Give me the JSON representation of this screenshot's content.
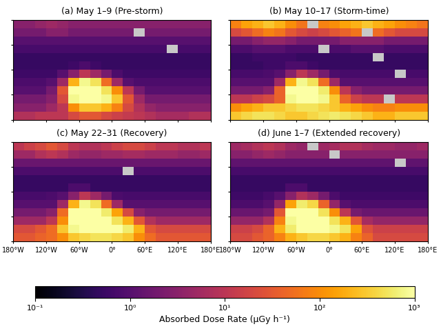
{
  "chart_data": [
    {
      "type": "heatmap",
      "title": "(a) May 1–9 (Pre-storm)",
      "tick_labels": false,
      "x": [
        -170,
        -150,
        -130,
        -110,
        -90,
        -70,
        -50,
        -30,
        -10,
        10,
        30,
        50,
        70,
        90,
        110,
        130,
        150,
        170
      ],
      "y": [
        55,
        45,
        35,
        25,
        15,
        5,
        -5,
        -15,
        -25,
        -35,
        -45,
        -55
      ],
      "xlim": [
        -180,
        180
      ],
      "ylim": [
        -60,
        60
      ],
      "xticks": [
        {
          "value": -180,
          "label": "180°W"
        },
        {
          "value": -120,
          "label": "120°W"
        },
        {
          "value": -60,
          "label": "60°W"
        },
        {
          "value": 0,
          "label": "0°"
        },
        {
          "value": 60,
          "label": "60°E"
        },
        {
          "value": 120,
          "label": "120°E"
        },
        {
          "value": 180,
          "label": "180°E"
        }
      ],
      "yticks": [
        -60,
        -30,
        0,
        30,
        60
      ],
      "cells": [
        [
          3,
          3,
          4,
          5,
          4,
          3,
          3,
          3,
          3,
          3,
          3,
          3,
          3,
          3,
          3,
          3,
          3,
          3
        ],
        [
          2,
          2,
          2,
          3,
          3,
          2,
          2,
          2,
          2,
          2,
          2,
          null,
          2,
          2,
          2,
          2,
          2,
          2
        ],
        [
          1,
          1,
          1,
          1,
          1,
          1,
          1,
          1,
          1,
          1,
          1,
          1,
          1,
          1,
          1,
          1,
          1,
          1
        ],
        [
          0.7,
          0.7,
          0.7,
          0.7,
          0.7,
          0.7,
          0.7,
          0.7,
          0.7,
          0.7,
          0.7,
          0.7,
          0.7,
          0.7,
          null,
          0.7,
          0.7,
          0.7
        ],
        [
          0.5,
          0.5,
          0.5,
          0.5,
          0.5,
          0.5,
          0.5,
          0.5,
          0.5,
          0.5,
          0.5,
          0.5,
          0.5,
          0.5,
          0.5,
          0.5,
          0.5,
          0.5
        ],
        [
          0.5,
          0.5,
          0.5,
          0.5,
          0.5,
          0.6,
          0.8,
          0.6,
          0.5,
          0.5,
          0.5,
          0.5,
          0.5,
          0.5,
          0.5,
          0.5,
          0.5,
          0.5
        ],
        [
          0.6,
          0.6,
          0.6,
          0.6,
          1,
          3,
          10,
          5,
          2,
          0.8,
          0.6,
          0.6,
          0.6,
          0.6,
          0.6,
          0.6,
          0.6,
          0.6
        ],
        [
          0.8,
          0.8,
          0.8,
          1,
          5,
          200,
          800,
          500,
          50,
          5,
          1,
          0.8,
          0.8,
          0.8,
          0.8,
          0.8,
          0.8,
          0.8
        ],
        [
          1,
          1,
          1,
          2,
          30,
          1000,
          1000,
          1000,
          500,
          100,
          10,
          2,
          1,
          1,
          1,
          1,
          1,
          1
        ],
        [
          2,
          2,
          2,
          3,
          20,
          800,
          1000,
          1000,
          800,
          300,
          30,
          5,
          2,
          2,
          2,
          2,
          2,
          2
        ],
        [
          3,
          3,
          3,
          5,
          10,
          100,
          300,
          300,
          200,
          80,
          20,
          8,
          4,
          3,
          3,
          3,
          3,
          3
        ],
        [
          8,
          8,
          10,
          10,
          10,
          20,
          30,
          30,
          20,
          15,
          12,
          10,
          8,
          6,
          6,
          6,
          8,
          8
        ]
      ]
    },
    {
      "type": "heatmap",
      "title": "(b) May 10–17 (Storm-time)",
      "tick_labels": false,
      "x": [
        -170,
        -150,
        -130,
        -110,
        -90,
        -70,
        -50,
        -30,
        -10,
        10,
        30,
        50,
        70,
        90,
        110,
        130,
        150,
        170
      ],
      "y": [
        55,
        45,
        35,
        25,
        15,
        5,
        -5,
        -15,
        -25,
        -35,
        -45,
        -55
      ],
      "xlim": [
        -180,
        180
      ],
      "ylim": [
        -60,
        60
      ],
      "xticks": [
        {
          "value": -180,
          "label": "180°W"
        },
        {
          "value": -120,
          "label": "120°W"
        },
        {
          "value": -60,
          "label": "60°W"
        },
        {
          "value": 0,
          "label": "0°"
        },
        {
          "value": 60,
          "label": "60°E"
        },
        {
          "value": 120,
          "label": "120°E"
        },
        {
          "value": 180,
          "label": "180°E"
        }
      ],
      "yticks": [
        -60,
        -30,
        0,
        30,
        60
      ],
      "cells": [
        [
          80,
          150,
          200,
          300,
          200,
          100,
          60,
          null,
          80,
          100,
          150,
          200,
          300,
          200,
          150,
          100,
          80,
          60
        ],
        [
          20,
          30,
          50,
          80,
          60,
          30,
          20,
          15,
          20,
          30,
          40,
          60,
          null,
          50,
          30,
          20,
          20,
          20
        ],
        [
          2,
          2,
          3,
          4,
          4,
          3,
          2,
          2,
          2,
          2,
          3,
          3,
          3,
          3,
          2,
          2,
          2,
          2
        ],
        [
          0.8,
          0.8,
          1,
          1,
          1,
          0.8,
          0.8,
          0.8,
          null,
          0.8,
          0.8,
          1,
          1,
          1,
          0.8,
          0.8,
          0.8,
          0.8
        ],
        [
          0.5,
          0.5,
          0.6,
          0.6,
          0.6,
          0.6,
          0.5,
          0.5,
          0.5,
          0.5,
          0.5,
          0.5,
          0.5,
          null,
          0.5,
          0.5,
          0.5,
          0.5
        ],
        [
          0.5,
          0.5,
          0.5,
          0.6,
          0.6,
          0.8,
          0.8,
          0.6,
          0.5,
          0.5,
          0.5,
          0.5,
          0.5,
          0.5,
          0.5,
          0.5,
          0.5,
          0.5
        ],
        [
          0.7,
          0.7,
          0.7,
          0.8,
          1,
          3,
          10,
          5,
          2,
          0.8,
          0.7,
          0.7,
          0.7,
          0.7,
          0.7,
          null,
          0.7,
          0.7
        ],
        [
          1,
          1,
          1,
          1,
          5,
          200,
          800,
          500,
          50,
          5,
          1,
          1,
          1,
          1,
          1,
          1,
          1,
          1
        ],
        [
          2,
          2,
          2,
          3,
          40,
          1000,
          1000,
          1000,
          600,
          100,
          10,
          3,
          2,
          2,
          2,
          2,
          2,
          2
        ],
        [
          10,
          10,
          15,
          20,
          40,
          800,
          1000,
          1000,
          800,
          300,
          40,
          15,
          10,
          10,
          null,
          10,
          10,
          10
        ],
        [
          100,
          150,
          200,
          300,
          300,
          400,
          500,
          500,
          400,
          300,
          200,
          150,
          100,
          80,
          80,
          100,
          100,
          100
        ],
        [
          300,
          400,
          500,
          500,
          400,
          300,
          300,
          400,
          500,
          600,
          500,
          400,
          300,
          200,
          200,
          300,
          300,
          300
        ]
      ]
    },
    {
      "type": "heatmap",
      "title": "(c) May 22–31 (Recovery)",
      "tick_labels": "x",
      "x": [
        -170,
        -150,
        -130,
        -110,
        -90,
        -70,
        -50,
        -30,
        -10,
        10,
        30,
        50,
        70,
        90,
        110,
        130,
        150,
        170
      ],
      "y": [
        55,
        45,
        35,
        25,
        15,
        5,
        -5,
        -15,
        -25,
        -35,
        -45,
        -55
      ],
      "xlim": [
        -180,
        180
      ],
      "ylim": [
        -60,
        60
      ],
      "xticks": [
        {
          "value": -180,
          "label": "180°W"
        },
        {
          "value": -120,
          "label": "120°W"
        },
        {
          "value": -60,
          "label": "60°W"
        },
        {
          "value": 0,
          "label": "0°"
        },
        {
          "value": 60,
          "label": "60°E"
        },
        {
          "value": 120,
          "label": "120°E"
        },
        {
          "value": 180,
          "label": "180°E"
        }
      ],
      "yticks": [
        -60,
        -30,
        0,
        30,
        60
      ],
      "cells": [
        [
          10,
          15,
          20,
          30,
          20,
          10,
          8,
          8,
          10,
          15,
          20,
          20,
          15,
          10,
          10,
          8,
          8,
          10
        ],
        [
          5,
          5,
          8,
          10,
          8,
          5,
          4,
          4,
          5,
          5,
          6,
          6,
          5,
          5,
          5,
          4,
          4,
          5
        ],
        [
          1.5,
          1.5,
          1.5,
          1.5,
          1.5,
          1.5,
          1.5,
          1.5,
          1.5,
          1.5,
          1.5,
          1.5,
          1.5,
          1.5,
          1.5,
          1.5,
          1.5,
          1.5
        ],
        [
          0.8,
          0.8,
          0.8,
          0.8,
          0.8,
          0.8,
          0.8,
          0.8,
          0.8,
          0.8,
          null,
          0.8,
          0.8,
          0.8,
          0.8,
          0.8,
          0.8,
          0.8
        ],
        [
          0.5,
          0.5,
          0.5,
          0.5,
          0.5,
          0.5,
          0.5,
          0.5,
          0.5,
          0.5,
          0.5,
          0.5,
          0.5,
          0.5,
          0.5,
          0.5,
          0.5,
          0.5
        ],
        [
          0.5,
          0.5,
          0.5,
          0.5,
          0.5,
          0.8,
          0.8,
          0.5,
          0.5,
          0.5,
          0.5,
          0.5,
          0.5,
          0.5,
          0.5,
          0.5,
          0.5,
          0.5
        ],
        [
          0.7,
          0.7,
          0.7,
          0.8,
          1,
          3,
          10,
          5,
          2,
          0.8,
          0.7,
          0.7,
          0.7,
          0.7,
          0.7,
          0.7,
          0.7,
          0.7
        ],
        [
          1,
          1,
          1,
          1,
          5,
          200,
          800,
          500,
          50,
          5,
          1,
          1,
          1,
          1,
          1,
          1,
          1,
          1
        ],
        [
          2,
          2,
          2,
          3,
          50,
          1000,
          1000,
          1000,
          600,
          150,
          20,
          3,
          2,
          2,
          2,
          2,
          2,
          2
        ],
        [
          5,
          5,
          5,
          10,
          100,
          1000,
          1000,
          1000,
          1000,
          500,
          200,
          30,
          8,
          5,
          5,
          5,
          5,
          5
        ],
        [
          20,
          20,
          30,
          50,
          300,
          800,
          1000,
          1000,
          1000,
          1000,
          600,
          200,
          30,
          20,
          20,
          20,
          20,
          20
        ],
        [
          30,
          30,
          40,
          50,
          100,
          300,
          400,
          500,
          500,
          400,
          300,
          100,
          50,
          30,
          30,
          30,
          30,
          30
        ]
      ]
    },
    {
      "type": "heatmap",
      "title": "(d) June 1–7 (Extended recovery)",
      "tick_labels": "x",
      "x": [
        -170,
        -150,
        -130,
        -110,
        -90,
        -70,
        -50,
        -30,
        -10,
        10,
        30,
        50,
        70,
        90,
        110,
        130,
        150,
        170
      ],
      "y": [
        55,
        45,
        35,
        25,
        15,
        5,
        -5,
        -15,
        -25,
        -35,
        -45,
        -55
      ],
      "xlim": [
        -180,
        180
      ],
      "ylim": [
        -60,
        60
      ],
      "xticks": [
        {
          "value": -180,
          "label": "180°W"
        },
        {
          "value": -120,
          "label": "120°W"
        },
        {
          "value": -60,
          "label": "60°W"
        },
        {
          "value": 0,
          "label": "0°"
        },
        {
          "value": 60,
          "label": "60°E"
        },
        {
          "value": 120,
          "label": "120°E"
        },
        {
          "value": 180,
          "label": "180°E"
        }
      ],
      "yticks": [
        -60,
        -30,
        0,
        30,
        60
      ],
      "cells": [
        [
          5,
          6,
          8,
          10,
          8,
          5,
          4,
          null,
          5,
          6,
          8,
          8,
          6,
          5,
          5,
          4,
          4,
          5
        ],
        [
          3,
          3,
          4,
          5,
          4,
          3,
          3,
          3,
          3,
          null,
          3,
          3,
          3,
          3,
          3,
          3,
          3,
          3
        ],
        [
          1.2,
          1.2,
          1.2,
          1.2,
          1.2,
          1.2,
          1.2,
          1.2,
          1.2,
          1.2,
          1.2,
          1.2,
          1.2,
          1.2,
          1.2,
          null,
          1.2,
          1.2
        ],
        [
          0.7,
          0.7,
          0.7,
          0.7,
          0.7,
          0.7,
          0.7,
          0.7,
          0.7,
          0.7,
          0.7,
          0.7,
          0.7,
          0.7,
          0.7,
          0.7,
          0.7,
          0.7
        ],
        [
          0.5,
          0.5,
          0.5,
          0.5,
          0.5,
          0.5,
          0.5,
          0.5,
          0.5,
          0.5,
          0.5,
          0.5,
          0.5,
          0.5,
          0.5,
          0.5,
          0.5,
          0.5
        ],
        [
          0.5,
          0.5,
          0.5,
          0.5,
          0.5,
          0.8,
          0.8,
          0.5,
          0.5,
          0.5,
          0.5,
          0.5,
          0.5,
          0.5,
          0.5,
          0.5,
          0.5,
          0.5
        ],
        [
          0.6,
          0.6,
          0.6,
          0.7,
          1,
          3,
          8,
          5,
          2,
          0.8,
          0.6,
          0.6,
          0.6,
          0.6,
          0.6,
          0.6,
          0.6,
          0.6
        ],
        [
          0.8,
          0.8,
          0.8,
          1,
          4,
          150,
          600,
          400,
          40,
          4,
          1,
          0.8,
          0.8,
          0.8,
          0.8,
          0.8,
          0.8,
          0.8
        ],
        [
          1.5,
          1.5,
          1.5,
          2,
          30,
          1000,
          1000,
          1000,
          500,
          100,
          10,
          2,
          1.5,
          1.5,
          1.5,
          1.5,
          1.5,
          1.5
        ],
        [
          4,
          4,
          4,
          8,
          80,
          800,
          1000,
          1000,
          1000,
          500,
          200,
          30,
          6,
          4,
          4,
          4,
          4,
          4
        ],
        [
          15,
          15,
          20,
          40,
          200,
          600,
          1000,
          1000,
          1000,
          800,
          500,
          150,
          25,
          15,
          15,
          15,
          15,
          15
        ],
        [
          20,
          20,
          30,
          40,
          80,
          200,
          300,
          400,
          400,
          300,
          200,
          80,
          40,
          20,
          20,
          20,
          20,
          20
        ]
      ]
    }
  ],
  "colorbar": {
    "label": "Absorbed Dose Rate (µGy h⁻¹)",
    "log": true,
    "range": [
      0.1,
      1000
    ],
    "ticks": [
      {
        "value": 0.1,
        "label": "10⁻¹"
      },
      {
        "value": 1,
        "label": "10⁰"
      },
      {
        "value": 10,
        "label": "10¹"
      },
      {
        "value": 100,
        "label": "10²"
      },
      {
        "value": 1000,
        "label": "10³"
      }
    ]
  }
}
